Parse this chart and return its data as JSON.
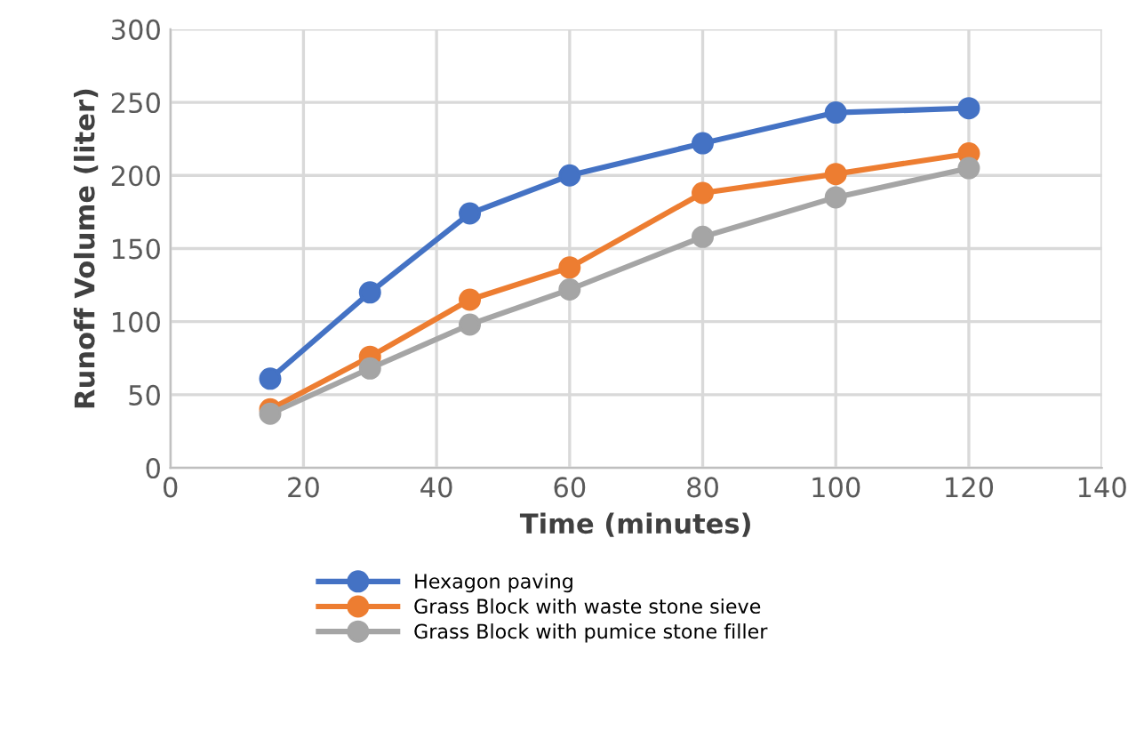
{
  "chart_data": {
    "type": "line",
    "xlabel": "Time (minutes)",
    "ylabel": "Runoff Volume (liter)",
    "x": [
      15,
      30,
      45,
      60,
      80,
      100,
      120
    ],
    "series": [
      {
        "name": "Hexagon paving",
        "color": "#4472c4",
        "values": [
          61,
          120,
          174,
          200,
          222,
          243,
          246
        ]
      },
      {
        "name": "Grass Block with waste stone sieve",
        "color": "#ed7d31",
        "values": [
          40,
          76,
          115,
          137,
          188,
          201,
          215
        ]
      },
      {
        "name": "Grass Block with pumice stone filler",
        "color": "#a5a5a5",
        "values": [
          37,
          68,
          98,
          122,
          158,
          185,
          205
        ]
      }
    ],
    "xlim": [
      0,
      140
    ],
    "xticks": [
      0,
      20,
      40,
      60,
      80,
      100,
      120,
      140
    ],
    "ylim": [
      0,
      300
    ],
    "yticks": [
      0,
      50,
      100,
      150,
      200,
      250,
      300
    ],
    "grid": true,
    "legend": "bottom",
    "marker": "circle",
    "line_style": "solid"
  }
}
